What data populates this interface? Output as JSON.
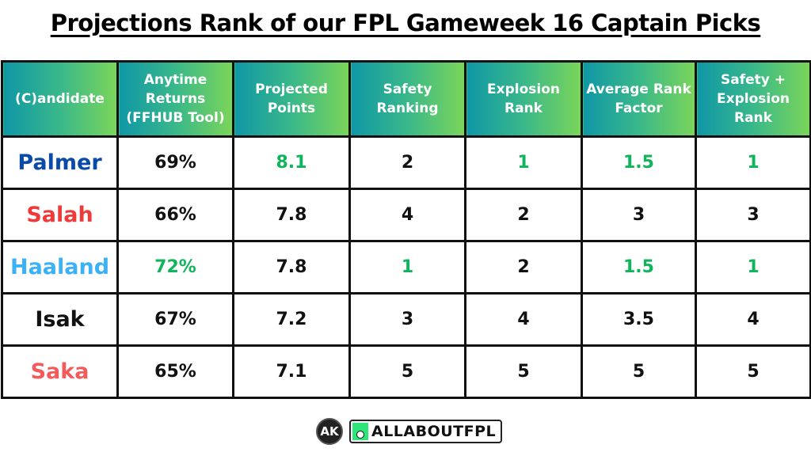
{
  "title": "Projections Rank of our FPL Gameweek 16 Captain Picks",
  "table": {
    "headers": [
      "(C)andidate",
      "Anytime Returns (FFHUB Tool)",
      "Projected Points",
      "Safety Ranking",
      "Explosion Rank",
      "Average Rank Factor",
      "Safety + Explosion Rank"
    ],
    "header_gradient": [
      "#0f97a6",
      "#7bd559"
    ],
    "highlight_color": "#10b45b",
    "rows": [
      {
        "name": "Palmer",
        "name_color": "#0a4aa8",
        "anytime": "69%",
        "projected": "8.1",
        "safety": "2",
        "explosion": "1",
        "avg": "1.5",
        "combined": "1",
        "highlight": [
          "projected",
          "explosion",
          "avg",
          "combined"
        ]
      },
      {
        "name": "Salah",
        "name_color": "#f03a3a",
        "anytime": "66%",
        "projected": "7.8",
        "safety": "4",
        "explosion": "2",
        "avg": "3",
        "combined": "3",
        "highlight": []
      },
      {
        "name": "Haaland",
        "name_color": "#3cb1f5",
        "anytime": "72%",
        "projected": "7.8",
        "safety": "1",
        "explosion": "2",
        "avg": "1.5",
        "combined": "1",
        "highlight": [
          "anytime",
          "safety",
          "avg",
          "combined"
        ]
      },
      {
        "name": "Isak",
        "name_color": "#111111",
        "anytime": "67%",
        "projected": "7.2",
        "safety": "3",
        "explosion": "4",
        "avg": "3.5",
        "combined": "4",
        "highlight": []
      },
      {
        "name": "Saka",
        "name_color": "#f35b5b",
        "anytime": "65%",
        "projected": "7.1",
        "safety": "5",
        "explosion": "5",
        "avg": "5",
        "combined": "5",
        "highlight": []
      }
    ]
  },
  "footer": {
    "ak_logo": "AK",
    "brand_icon": "football-boot-icon",
    "brand": "ALLABOUTFPL"
  }
}
